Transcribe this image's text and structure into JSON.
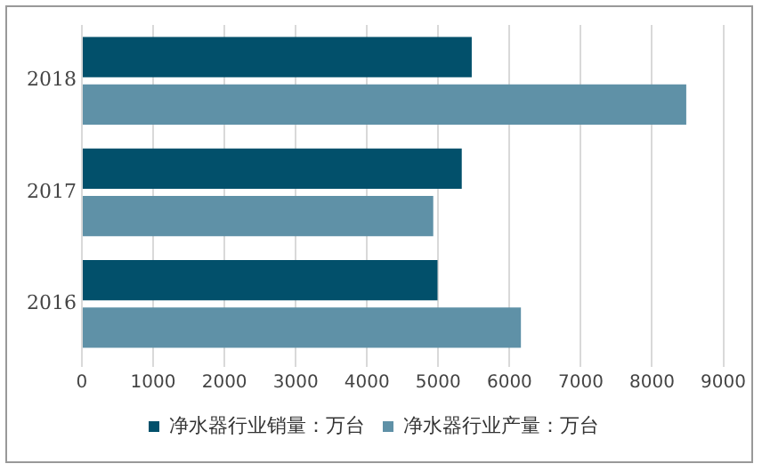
{
  "chart_data": {
    "type": "bar",
    "orientation": "horizontal",
    "categories": [
      "2018",
      "2017",
      "2016"
    ],
    "series": [
      {
        "name": "净水器行业销量：万台",
        "color": "#02506b",
        "values": [
          5470,
          5330,
          4990
        ]
      },
      {
        "name": "净水器行业产量：万台",
        "color": "#5f91a7",
        "values": [
          8480,
          4930,
          6160
        ]
      }
    ],
    "xlim": [
      0,
      9000
    ],
    "xticks": [
      0,
      1000,
      2000,
      3000,
      4000,
      5000,
      6000,
      7000,
      8000,
      9000
    ],
    "grid": "x",
    "legend": "bottom"
  }
}
